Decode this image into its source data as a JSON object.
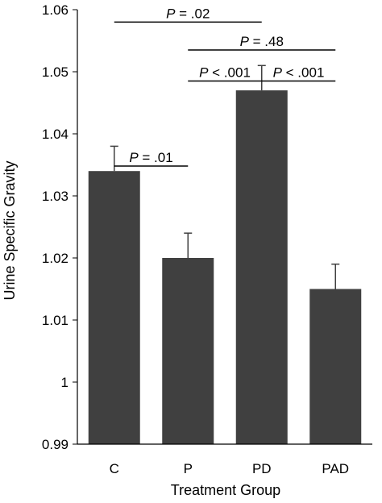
{
  "chart_data": {
    "type": "bar",
    "categories": [
      "C",
      "P",
      "PD",
      "PAD"
    ],
    "values": [
      1.034,
      1.02,
      1.047,
      1.015
    ],
    "error_bars": [
      0.004,
      0.004,
      0.004,
      0.004
    ],
    "xlabel": "Treatment Group",
    "ylabel": "Urine Specific Gravity",
    "ylim": [
      0.99,
      1.06
    ],
    "yticks": [
      0.99,
      1,
      1.01,
      1.02,
      1.03,
      1.04,
      1.05,
      1.06
    ],
    "ytick_labels": [
      "0.99",
      "1",
      "1.01",
      "1.02",
      "1.03",
      "1.04",
      "1.05",
      "1.06"
    ],
    "bar_color": "#404040",
    "grid": false,
    "annotations": [
      {
        "from": "C",
        "to": "PD",
        "p_symbol": "P",
        "p_text": " = .02",
        "y": 1.058
      },
      {
        "from": "P",
        "to": "PAD",
        "p_symbol": "P",
        "p_text": " = .48",
        "y": 1.0535
      },
      {
        "from": "P",
        "to": "PD",
        "p_symbol": "P",
        "p_text": " < .001",
        "y": 1.0485
      },
      {
        "from": "PD",
        "to": "PAD",
        "p_symbol": "P",
        "p_text": " < .001",
        "y": 1.0485
      },
      {
        "from": "C",
        "to": "P",
        "p_symbol": "P",
        "p_text": " = .01",
        "y": 1.0348
      }
    ]
  }
}
